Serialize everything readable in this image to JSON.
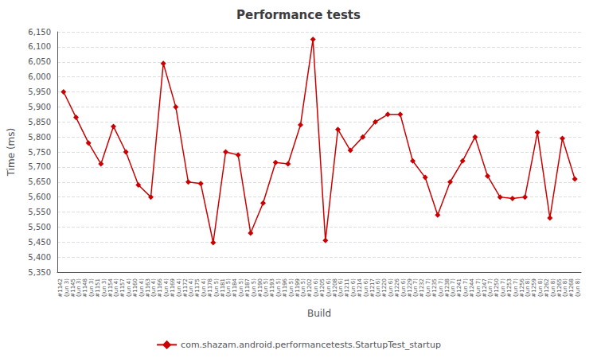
{
  "chart_data": {
    "type": "line",
    "title": "Performance tests",
    "xlabel": "Build",
    "ylabel": "Time (ms)",
    "categories": [
      "#1142\n(Jun 3)",
      "#1145\n(Jun 3)",
      "#1148\n(Jun 3)",
      "#1151\n(Jun 3)",
      "#1154\n(Jun 4)",
      "#1157\n(Jun 4)",
      "#1160\n(Jun 4)",
      "#1163\n(Jun 4)",
      "#1166\n(Jun 4)",
      "#1169\n(Jun 4)",
      "#1172\n(Jun 4)",
      "#1175\n(Jun 4)",
      "#1178\n(Jun 5)",
      "#1181\n(Jun 5)",
      "#1184\n(Jun 5)",
      "#1187\n(Jun 5)",
      "#1190\n(Jun 5)",
      "#1193\n(Jun 5)",
      "#1196\n(Jun 5)",
      "#1199\n(Jun 5)",
      "#1202\n(Jun 6)",
      "#1205\n(Jun 6)",
      "#1208\n(Jun 6)",
      "#1211\n(Jun 6)",
      "#1214\n(Jun 6)",
      "#1217\n(Jun 6)",
      "#1220\n(Jun 6)",
      "#1226\n(Jun 6)",
      "#1229\n(Jun 7)",
      "#1232\n(Jun 7)",
      "#1235\n(Jun 7)",
      "#1238\n(Jun 7)",
      "#1241\n(Jun 7)",
      "#1244\n(Jun 7)",
      "#1247\n(Jun 7)",
      "#1250\n(Jun 7)",
      "#1253\n(Jun 7)",
      "#1256\n(Jun 8)",
      "#1259\n(Jun 8)",
      "#1262\n(Jun 8)",
      "#1265\n(Jun 8)",
      "#1268\n(Jun 8)"
    ],
    "series": [
      {
        "name": "com.shazam.android.performancetests.StartupTest_startup",
        "color": "#cc0000",
        "marker": "diamond",
        "values": [
          5950,
          5865,
          5780,
          5710,
          5835,
          5750,
          5640,
          5600,
          6045,
          5900,
          5650,
          5645,
          5448,
          5750,
          5740,
          5480,
          5580,
          5715,
          5710,
          5840,
          6125,
          5455,
          5825,
          5755,
          5800,
          5850,
          5875,
          5875,
          5720,
          5665,
          5540,
          5650,
          5720,
          5800,
          5670,
          5600,
          5595,
          5600,
          5815,
          5530,
          5795,
          5660
        ]
      }
    ],
    "ylim": [
      5350,
      6150
    ],
    "yticks": [
      {
        "value": 5350,
        "label": "5,350"
      },
      {
        "value": 5400,
        "label": "5,400"
      },
      {
        "value": 5450,
        "label": "5,450"
      },
      {
        "value": 5500,
        "label": "5,500"
      },
      {
        "value": 5550,
        "label": "5,550"
      },
      {
        "value": 5600,
        "label": "5,600"
      },
      {
        "value": 5650,
        "label": "5,650"
      },
      {
        "value": 5700,
        "label": "5,700"
      },
      {
        "value": 5750,
        "label": "5,750"
      },
      {
        "value": 5800,
        "label": "5,800"
      },
      {
        "value": 5850,
        "label": "5,850"
      },
      {
        "value": 5900,
        "label": "5,900"
      },
      {
        "value": 5950,
        "label": "5,950"
      },
      {
        "value": 6000,
        "label": "6,000"
      },
      {
        "value": 6050,
        "label": "6,050"
      },
      {
        "value": 6100,
        "label": "6,100"
      },
      {
        "value": 6150,
        "label": "6,150"
      }
    ],
    "grid": true,
    "legend": "bottom"
  }
}
